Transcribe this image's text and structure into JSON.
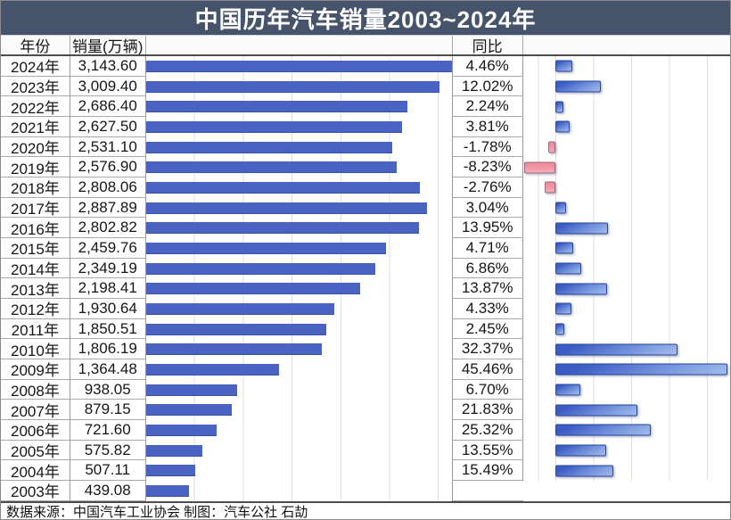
{
  "title": "中国历年汽车销量2003~2024年",
  "header": {
    "year": "年份",
    "sales": "销量(万辆)",
    "yoy": "同比"
  },
  "footer": {
    "source": "数据来源：中国汽车工业协会  制图：汽车公社 石劼"
  },
  "colors": {
    "title_bg": "#45536b",
    "sales_bar": "#4a63c3",
    "yoy_positive": "#3d5fc5",
    "yoy_negative": "#f0919f",
    "gridline": "#dcdfe6"
  },
  "chart_data": {
    "type": "bar",
    "orientation": "horizontal",
    "title": "中国历年汽车销量2003~2024年",
    "categories": [
      "2024年",
      "2023年",
      "2022年",
      "2021年",
      "2020年",
      "2019年",
      "2018年",
      "2017年",
      "2016年",
      "2015年",
      "2014年",
      "2013年",
      "2012年",
      "2011年",
      "2010年",
      "2009年",
      "2008年",
      "2007年",
      "2006年",
      "2005年",
      "2004年",
      "2003年"
    ],
    "series": [
      {
        "name": "销量(万辆)",
        "values": [
          3143.6,
          3009.4,
          2686.4,
          2627.5,
          2531.1,
          2576.9,
          2808.06,
          2887.89,
          2802.82,
          2459.76,
          2349.19,
          2198.41,
          1930.64,
          1850.51,
          1806.19,
          1364.48,
          938.05,
          879.15,
          721.6,
          575.82,
          507.11,
          439.08
        ]
      },
      {
        "name": "同比",
        "values": [
          4.46,
          12.02,
          2.24,
          3.81,
          -1.78,
          -8.23,
          -2.76,
          3.04,
          13.95,
          4.71,
          6.86,
          13.87,
          4.33,
          2.45,
          32.37,
          45.46,
          6.7,
          21.83,
          25.32,
          13.55,
          15.49,
          null
        ]
      }
    ],
    "sales_labels": [
      "3,143.60",
      "3,009.40",
      "2,686.40",
      "2,627.50",
      "2,531.10",
      "2,576.90",
      "2,808.06",
      "2,887.89",
      "2,802.82",
      "2,459.76",
      "2,349.19",
      "2,198.41",
      "1,930.64",
      "1,850.51",
      "1,806.19",
      "1,364.48",
      "938.05",
      "879.15",
      "721.60",
      "575.82",
      "507.11",
      "439.08"
    ],
    "yoy_labels": [
      "4.46%",
      "12.02%",
      "2.24%",
      "3.81%",
      "-1.78%",
      "-8.23%",
      "-2.76%",
      "3.04%",
      "13.95%",
      "4.71%",
      "6.86%",
      "13.87%",
      "4.33%",
      "2.45%",
      "32.37%",
      "45.46%",
      "6.70%",
      "21.83%",
      "25.32%",
      "13.55%",
      "15.49%",
      ""
    ],
    "sales_axis": {
      "min": 0,
      "max": 3155,
      "gridline_interval": 500,
      "grid": true
    },
    "yoy_axis": {
      "min": -10,
      "max": 46,
      "gridline_interval": 10,
      "grid": true
    },
    "legend": "none"
  }
}
